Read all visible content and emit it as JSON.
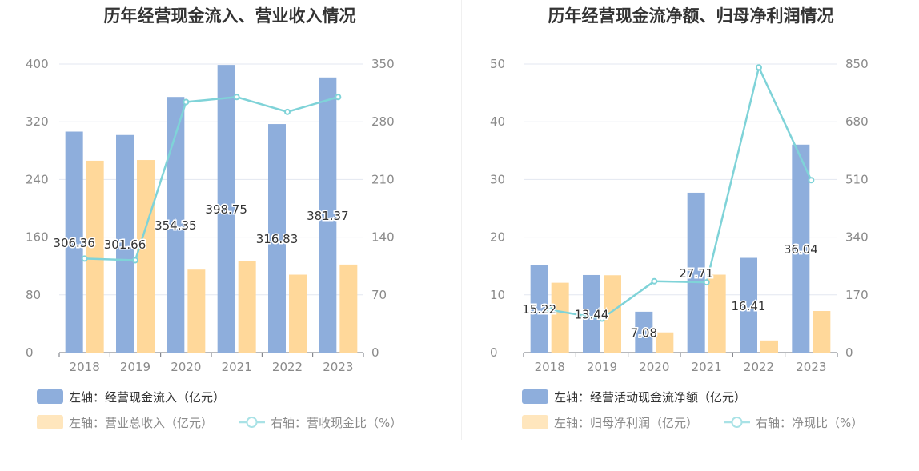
{
  "chart_data": [
    {
      "type": "bar",
      "title": "历年经营现金流入、营业收入情况",
      "categories": [
        "2018",
        "2019",
        "2020",
        "2021",
        "2022",
        "2023"
      ],
      "left_axis": {
        "ticks": [
          "0",
          "80",
          "160",
          "240",
          "320",
          "400"
        ],
        "ylim": [
          0,
          400
        ]
      },
      "right_axis": {
        "ticks": [
          "0",
          "70",
          "140",
          "210",
          "280",
          "350"
        ],
        "ylim": [
          0,
          350
        ]
      },
      "series": [
        {
          "name": "左轴：经营现金流入（亿元）",
          "type": "bar",
          "axis": "left",
          "color": "#8eaedc",
          "values": [
            306.36,
            301.66,
            354.35,
            398.75,
            316.83,
            381.37
          ],
          "labels": [
            "306.36",
            "301.66",
            "354.35",
            "398.75",
            "316.83",
            "381.37"
          ]
        },
        {
          "name": "左轴：营业总收入（亿元）",
          "type": "bar",
          "axis": "left",
          "color": "#ffd89a",
          "values": [
            266,
            267,
            115,
            127,
            108,
            122
          ]
        },
        {
          "name": "右轴：营收现金比（%）",
          "type": "line",
          "axis": "right",
          "color": "#7fd3d8",
          "values": [
            114,
            112,
            304,
            310,
            292,
            310
          ]
        }
      ],
      "grid": true,
      "legend_position": "bottom-left"
    },
    {
      "type": "bar",
      "title": "历年经营现金流净额、归母净利润情况",
      "categories": [
        "2018",
        "2019",
        "2020",
        "2021",
        "2022",
        "2023"
      ],
      "left_axis": {
        "ticks": [
          "0",
          "10",
          "20",
          "30",
          "40",
          "50"
        ],
        "ylim": [
          0,
          50
        ]
      },
      "right_axis": {
        "ticks": [
          "0",
          "170",
          "340",
          "510",
          "680",
          "850"
        ],
        "ylim": [
          0,
          850
        ]
      },
      "series": [
        {
          "name": "左轴：经营活动现金流净额（亿元）",
          "type": "bar",
          "axis": "left",
          "color": "#8eaedc",
          "values": [
            15.22,
            13.44,
            7.08,
            27.71,
            16.41,
            36.04
          ],
          "labels": [
            "15.22",
            "13.44",
            "7.08",
            "27.71",
            "16.41",
            "36.04"
          ]
        },
        {
          "name": "左轴：归母净利润（亿元）",
          "type": "bar",
          "axis": "left",
          "color": "#ffd89a",
          "values": [
            12.1,
            13.4,
            3.5,
            13.5,
            2.1,
            7.2
          ]
        },
        {
          "name": "右轴：净现比（%）",
          "type": "line",
          "axis": "right",
          "color": "#7fd3d8",
          "values": [
            126,
            100,
            210,
            207,
            840,
            508
          ]
        }
      ],
      "grid": true,
      "legend_position": "bottom-left"
    }
  ]
}
